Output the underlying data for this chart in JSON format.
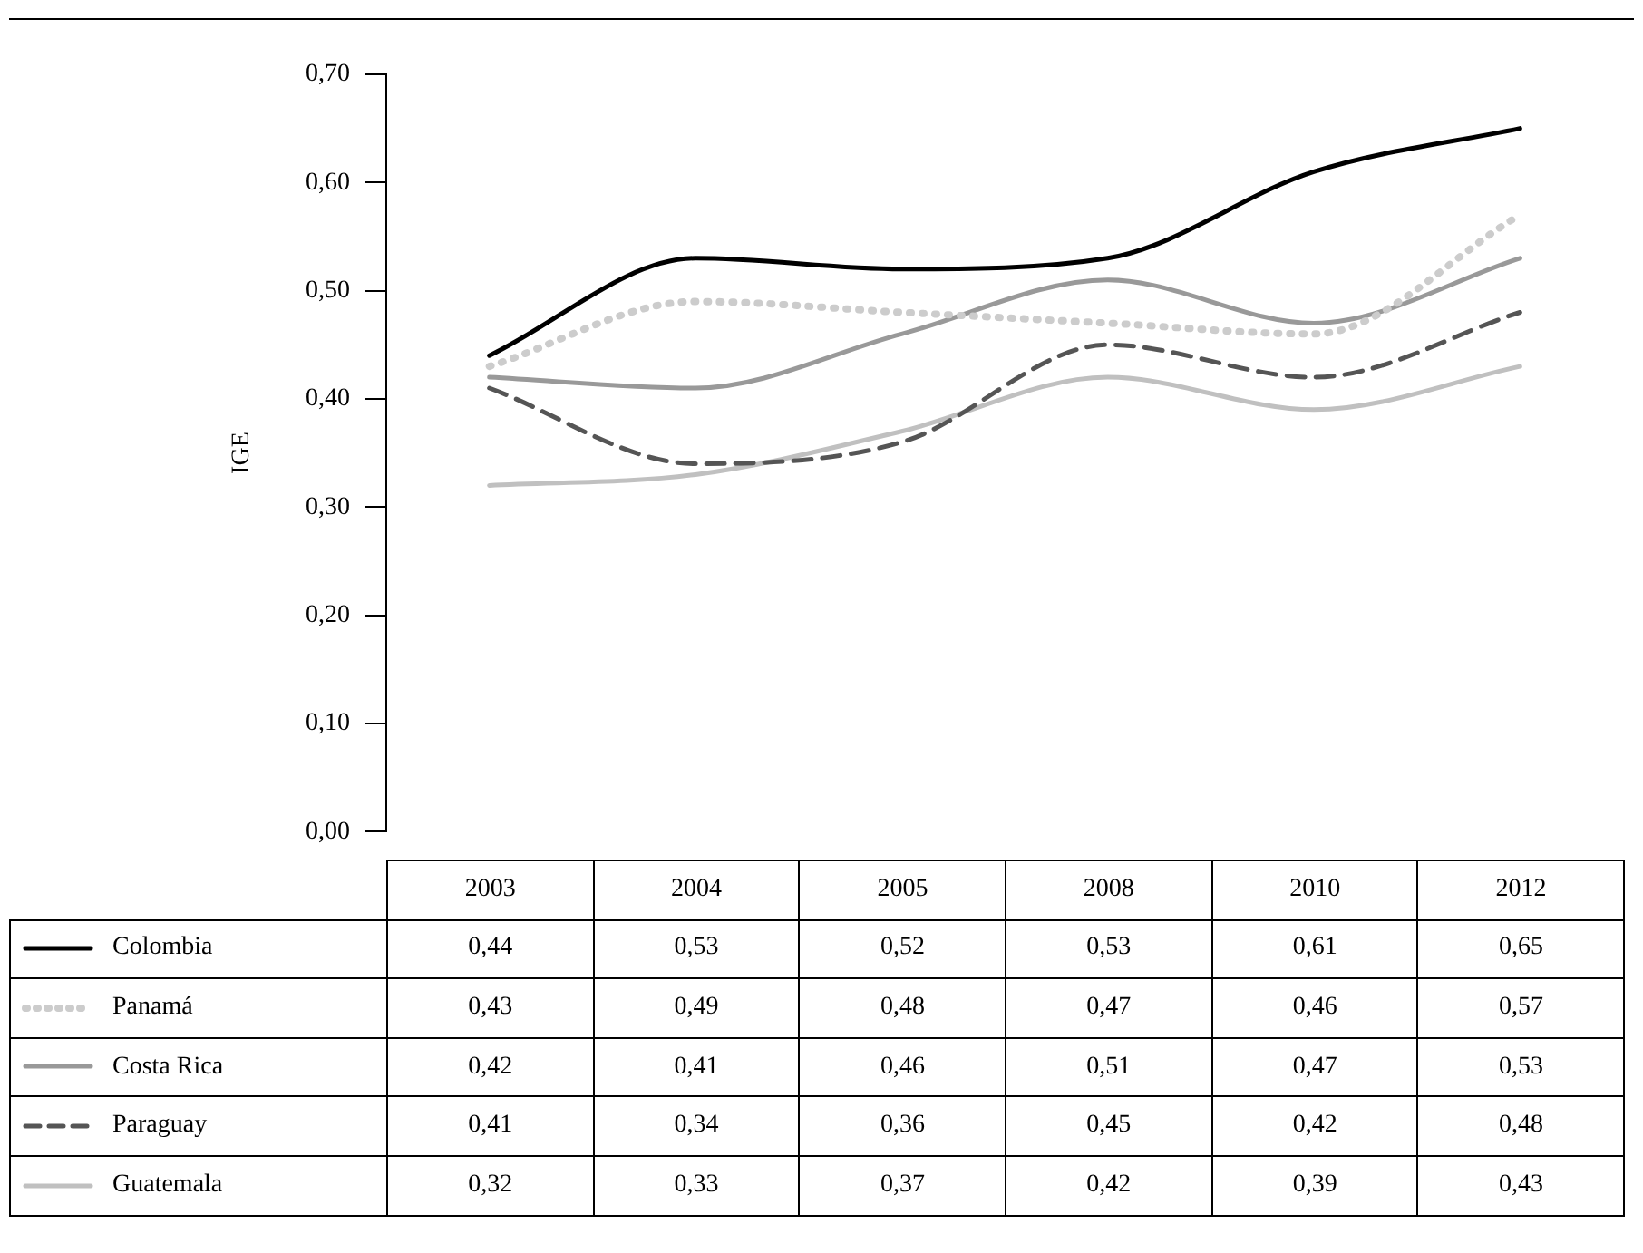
{
  "chart_data": {
    "type": "line",
    "ylabel": "IGE",
    "categories": [
      "2003",
      "2004",
      "2005",
      "2008",
      "2010",
      "2012"
    ],
    "ylim": [
      0,
      0.7
    ],
    "yticks": [
      {
        "value": 0,
        "label": "0,00"
      },
      {
        "value": 0.1,
        "label": "0,10"
      },
      {
        "value": 0.2,
        "label": "0,20"
      },
      {
        "value": 0.3,
        "label": "0,30"
      },
      {
        "value": 0.4,
        "label": "0,40"
      },
      {
        "value": 0.5,
        "label": "0,50"
      },
      {
        "value": 0.6,
        "label": "0,60"
      },
      {
        "value": 0.7,
        "label": "0,70"
      }
    ],
    "grid": false,
    "legend": "bottom",
    "marker": "none",
    "series": [
      {
        "name": "Colombia",
        "color": "#000000",
        "line_style": "solid",
        "values": [
          0.44,
          0.53,
          0.52,
          0.53,
          0.61,
          0.65
        ],
        "value_labels": [
          "0,44",
          "0,53",
          "0,52",
          "0,53",
          "0,61",
          "0,65"
        ]
      },
      {
        "name": "Panamá",
        "color": "#cccccc",
        "line_style": "dotted",
        "values": [
          0.43,
          0.49,
          0.48,
          0.47,
          0.46,
          0.57
        ],
        "value_labels": [
          "0,43",
          "0,49",
          "0,48",
          "0,47",
          "0,46",
          "0,57"
        ]
      },
      {
        "name": "Costa Rica",
        "color": "#999999",
        "line_style": "solid",
        "values": [
          0.42,
          0.41,
          0.46,
          0.51,
          0.47,
          0.53
        ],
        "value_labels": [
          "0,42",
          "0,41",
          "0,46",
          "0,51",
          "0,47",
          "0,53"
        ]
      },
      {
        "name": "Paraguay",
        "color": "#555555",
        "line_style": "dashed",
        "values": [
          0.41,
          0.34,
          0.36,
          0.45,
          0.42,
          0.48
        ],
        "value_labels": [
          "0,41",
          "0,34",
          "0,36",
          "0,45",
          "0,42",
          "0,48"
        ]
      },
      {
        "name": "Guatemala",
        "color": "#c0c0c0",
        "line_style": "solid",
        "values": [
          0.32,
          0.33,
          0.37,
          0.42,
          0.39,
          0.43
        ],
        "value_labels": [
          "0,32",
          "0,33",
          "0,37",
          "0,42",
          "0,39",
          "0,43"
        ]
      }
    ]
  }
}
